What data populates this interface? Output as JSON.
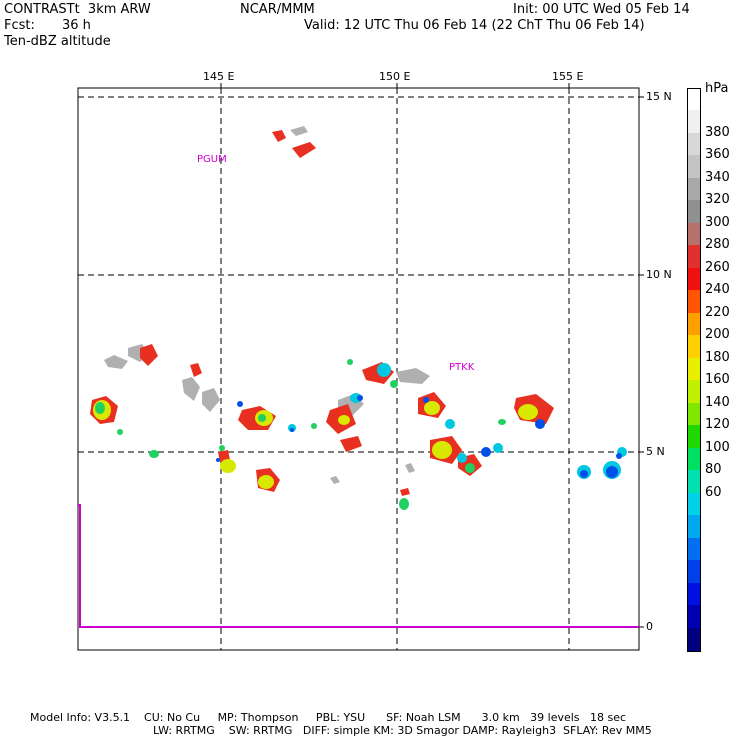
{
  "header": {
    "model": "CONTRASTt  3km ARW",
    "org": "NCAR/MMM",
    "init": "Init: 00 UTC Wed 05 Feb 14",
    "fcst_label": "Fcst:",
    "fcst_value": "36 h",
    "valid": "Valid: 12 UTC Thu 06 Feb 14 (22 ChT Thu 06 Feb 14)",
    "field": "Ten-dBZ altitude"
  },
  "map": {
    "lon_labels": [
      "145 E",
      "150 E",
      "155 E"
    ],
    "lat_labels": [
      "15 N",
      "10 N",
      "5 N",
      "0"
    ],
    "stations": [
      "PGUM",
      "PTKK"
    ],
    "station_color": "#cc00cc"
  },
  "colorbar": {
    "unit": "hPa",
    "levels": [
      "380",
      "360",
      "340",
      "320",
      "300",
      "280",
      "260",
      "240",
      "220",
      "200",
      "180",
      "160",
      "140",
      "120",
      "100",
      "80",
      "60"
    ],
    "colors": [
      "#ffffff",
      "#f0f0f0",
      "#d8d8d8",
      "#c4c4c4",
      "#a8a8a8",
      "#909090",
      "#b8706a",
      "#e03030",
      "#f01010",
      "#ff5500",
      "#ffa000",
      "#ffd000",
      "#e8f000",
      "#c0f000",
      "#80e800",
      "#20d800",
      "#00e060",
      "#00e0b0",
      "#00d0e8",
      "#00a8f0",
      "#0070f0",
      "#0040e8",
      "#0010e0",
      "#0000b0",
      "#000080"
    ]
  },
  "footer": {
    "line1": "Model Info: V3.5.1    CU: No Cu     MP: Thompson     PBL: YSU      SF: Noah LSM      3.0 km   39 levels   18 sec",
    "line2": "LW: RRTMG    SW: RRTMG   DIFF: simple KM: 3D Smagor DAMP: Rayleigh3  SFLAY: Rev MM5"
  }
}
